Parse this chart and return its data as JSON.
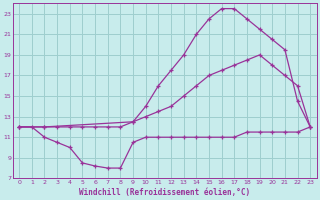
{
  "title": "",
  "xlabel": "Windchill (Refroidissement éolien,°C)",
  "ylabel": "",
  "background_color": "#c8ecec",
  "grid_color": "#9ecece",
  "line_color": "#993399",
  "xlim": [
    -0.5,
    23.5
  ],
  "ylim": [
    7,
    24
  ],
  "xticks": [
    0,
    1,
    2,
    3,
    4,
    5,
    6,
    7,
    8,
    9,
    10,
    11,
    12,
    13,
    14,
    15,
    16,
    17,
    18,
    19,
    20,
    21,
    22,
    23
  ],
  "yticks": [
    7,
    9,
    11,
    13,
    15,
    17,
    19,
    21,
    23
  ],
  "line1_x": [
    0,
    1,
    2,
    3,
    4,
    5,
    6,
    7,
    8,
    9,
    10,
    11,
    12,
    13,
    14,
    15,
    16,
    17,
    18,
    19,
    20,
    21,
    22,
    23
  ],
  "line1_y": [
    12,
    12,
    11,
    10.5,
    10,
    8.5,
    8.2,
    8.0,
    8.0,
    10.5,
    11,
    11,
    11,
    11,
    11,
    11,
    11,
    11,
    11.5,
    11.5,
    11.5,
    11.5,
    11.5,
    12
  ],
  "line2_x": [
    0,
    2,
    3,
    4,
    5,
    6,
    7,
    8,
    9,
    10,
    11,
    12,
    13,
    14,
    15,
    16,
    17,
    18,
    19,
    20,
    21,
    22,
    23
  ],
  "line2_y": [
    12,
    12,
    12,
    12,
    12,
    12,
    12,
    12,
    12.5,
    13,
    13.5,
    14,
    15,
    16,
    17,
    17.5,
    18,
    18.5,
    19,
    18,
    17,
    16,
    12
  ],
  "line3_x": [
    0,
    2,
    9,
    10,
    11,
    12,
    13,
    14,
    15,
    16,
    17,
    18,
    19,
    20,
    21,
    22,
    23
  ],
  "line3_y": [
    12,
    12,
    12.5,
    14,
    16,
    17.5,
    19,
    21,
    22.5,
    23.5,
    23.5,
    22.5,
    21.5,
    20.5,
    19.5,
    14.5,
    12
  ]
}
